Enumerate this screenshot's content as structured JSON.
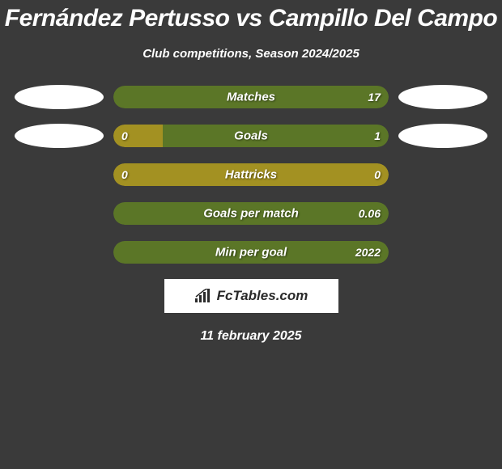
{
  "title": "Fernández Pertusso vs Campillo Del Campo",
  "subtitle": "Club competitions, Season 2024/2025",
  "date_text": "11 february 2025",
  "logo_text": "FcTables.com",
  "colors": {
    "bg": "#3a3a3a",
    "ellipse": "#ffffff",
    "left_bar": "#a39122",
    "right_bar": "#5b7627",
    "full_olive": "#a39122",
    "text": "#ffffff"
  },
  "rows": [
    {
      "label": "Matches",
      "left_value": "",
      "right_value": "17",
      "left_pct": 0,
      "right_pct": 100,
      "left_color": "#a39122",
      "right_color": "#5b7627",
      "ellipse_left": true,
      "ellipse_right": true
    },
    {
      "label": "Goals",
      "left_value": "0",
      "right_value": "1",
      "left_pct": 18,
      "right_pct": 82,
      "left_color": "#a39122",
      "right_color": "#5b7627",
      "ellipse_left": true,
      "ellipse_right": true
    },
    {
      "label": "Hattricks",
      "left_value": "0",
      "right_value": "0",
      "left_pct": 100,
      "right_pct": 0,
      "left_color": "#a39122",
      "right_color": "#5b7627",
      "ellipse_left": false,
      "ellipse_right": false
    },
    {
      "label": "Goals per match",
      "left_value": "",
      "right_value": "0.06",
      "left_pct": 0,
      "right_pct": 100,
      "left_color": "#a39122",
      "right_color": "#5b7627",
      "ellipse_left": false,
      "ellipse_right": false
    },
    {
      "label": "Min per goal",
      "left_value": "",
      "right_value": "2022",
      "left_pct": 0,
      "right_pct": 100,
      "left_color": "#a39122",
      "right_color": "#5b7627",
      "ellipse_left": false,
      "ellipse_right": false
    }
  ]
}
